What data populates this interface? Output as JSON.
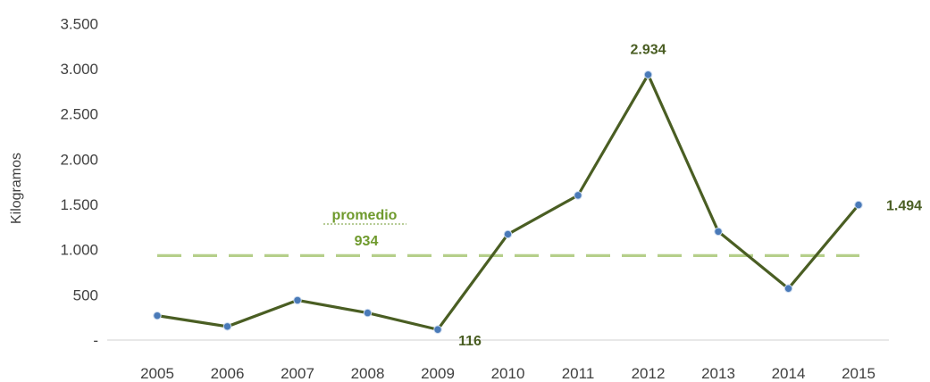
{
  "chart_data": {
    "type": "line",
    "title": "",
    "xlabel": "",
    "ylabel": "Kilogramos",
    "categories": [
      "2005",
      "2006",
      "2007",
      "2008",
      "2009",
      "2010",
      "2011",
      "2012",
      "2013",
      "2014",
      "2015"
    ],
    "series": [
      {
        "name": "",
        "values": [
          270,
          150,
          440,
          300,
          116,
          1170,
          1600,
          2934,
          1200,
          570,
          1494
        ]
      }
    ],
    "ylim": [
      0,
      3500
    ],
    "yticks": [
      0,
      500,
      1000,
      1500,
      2000,
      2500,
      3000,
      3500
    ],
    "ytick_labels": [
      "-",
      "500",
      "1.000",
      "1.500",
      "2.000",
      "2.500",
      "3.000",
      "3.500"
    ],
    "grid": false,
    "data_labels": [
      {
        "index": 4,
        "text": "116"
      },
      {
        "index": 7,
        "text": "2.934"
      },
      {
        "index": 10,
        "text": "1.494"
      }
    ],
    "average": {
      "value": 934,
      "label": "promedio",
      "value_label": "934"
    },
    "colors": {
      "line": "#4a5e23",
      "marker": "#4a7ab8",
      "average": "#b5cf8a",
      "average_text": "#6f9a2d"
    }
  }
}
